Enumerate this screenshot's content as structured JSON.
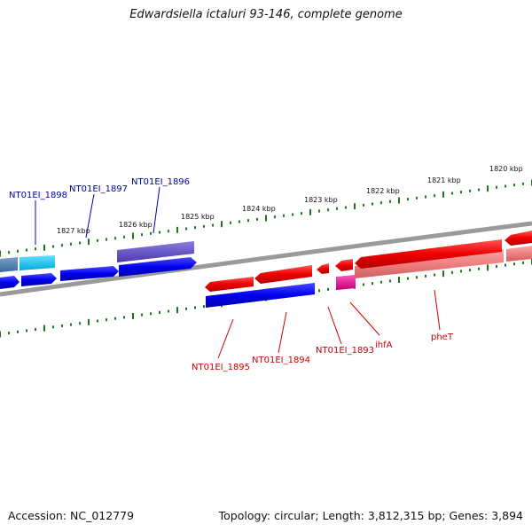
{
  "title": "Edwardsiella ictaluri 93-146, complete genome",
  "footer": {
    "accession": "Accession: NC_012779",
    "topology": "Topology: circular; Length: 3,812,315 bp; Genes: 3,894"
  },
  "kbp_ticks": [
    "1827 kbp",
    "1826 kbp",
    "1825 kbp",
    "1824 kbp",
    "1823 kbp",
    "1822 kbp",
    "1821 kbp",
    "1820 kbp"
  ],
  "gene_labels": [
    {
      "text": "NT01EI_1898",
      "color": "#0000aa"
    },
    {
      "text": "NT01EI_1897",
      "color": "#0000aa"
    },
    {
      "text": "NT01EI_1896",
      "color": "#0000aa"
    },
    {
      "text": "NT01EI_1895",
      "color": "#cc0000"
    },
    {
      "text": "NT01EI_1894",
      "color": "#cc0000"
    },
    {
      "text": "NT01EI_1893",
      "color": "#cc0000"
    },
    {
      "text": "ihfA",
      "color": "#cc0000"
    },
    {
      "text": "pheT",
      "color": "#cc0000"
    }
  ],
  "colors": {
    "backbone": "#808080",
    "tick": "#1a7a1a",
    "forward_strand": "#0000ee",
    "reverse_strand": "#ee0000",
    "light_forward": "#22ccff",
    "light_reverse": "#f08080",
    "magenta": "#ee1199",
    "lavender": "#6a5acd"
  }
}
